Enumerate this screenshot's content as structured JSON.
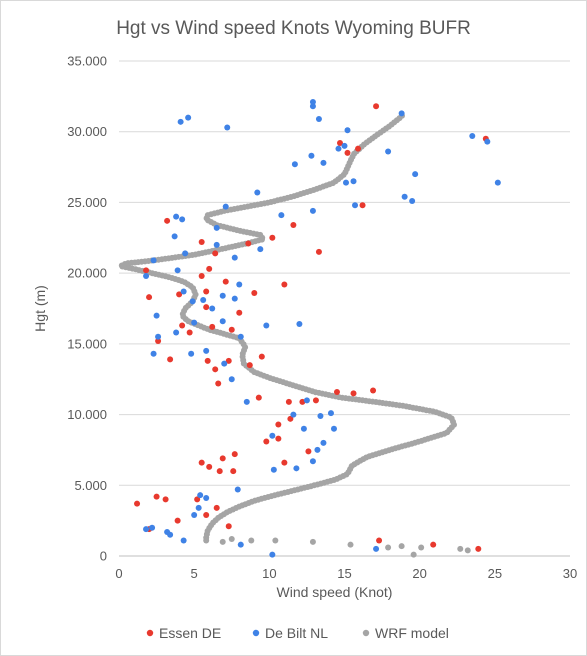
{
  "chart_data": {
    "type": "scatter",
    "title": "Hgt vs Wind speed Knots Wyoming BUFR",
    "xlabel": "Wind speed  (Knot)",
    "ylabel": "Hgt (m)",
    "xlim": [
      0,
      30
    ],
    "ylim": [
      0,
      35000
    ],
    "x_ticks": [
      0,
      5,
      10,
      15,
      20,
      25,
      30
    ],
    "x_tick_labels": [
      "0",
      "5",
      "10",
      "15",
      "20",
      "25",
      "30"
    ],
    "y_ticks": [
      0,
      5000,
      10000,
      15000,
      20000,
      25000,
      30000,
      35000
    ],
    "y_tick_labels": [
      "0",
      "5.000",
      "10.000",
      "15.000",
      "20.000",
      "25.000",
      "30.000",
      "35.000"
    ],
    "grid": "horizontal",
    "legend_position": "bottom",
    "colors": {
      "essen": "#e8392e",
      "debilt": "#3f82e6",
      "wrf": "#a5a5a5"
    },
    "series": [
      {
        "name": "Essen DE",
        "color": "#e8392e",
        "points": [
          [
            23.9,
            500
          ],
          [
            20.9,
            800
          ],
          [
            17.3,
            1100
          ],
          [
            1.2,
            3700
          ],
          [
            2.0,
            1900
          ],
          [
            2.5,
            4200
          ],
          [
            3.1,
            4000
          ],
          [
            3.9,
            2500
          ],
          [
            5.8,
            2900
          ],
          [
            5.2,
            4000
          ],
          [
            6.5,
            3400
          ],
          [
            7.3,
            2100
          ],
          [
            5.5,
            6600
          ],
          [
            6.0,
            6300
          ],
          [
            6.7,
            6000
          ],
          [
            6.9,
            6900
          ],
          [
            7.6,
            6000
          ],
          [
            7.7,
            7200
          ],
          [
            11.0,
            6600
          ],
          [
            12.6,
            7400
          ],
          [
            10.6,
            9300
          ],
          [
            11.4,
            9700
          ],
          [
            9.8,
            8100
          ],
          [
            10.6,
            8300
          ],
          [
            11.3,
            10900
          ],
          [
            9.3,
            11200
          ],
          [
            13.1,
            11000
          ],
          [
            14.5,
            11600
          ],
          [
            15.6,
            11500
          ],
          [
            16.9,
            11700
          ],
          [
            12.2,
            10900
          ],
          [
            6.6,
            12200
          ],
          [
            6.4,
            13200
          ],
          [
            5.9,
            13800
          ],
          [
            7.3,
            13800
          ],
          [
            9.5,
            14100
          ],
          [
            8.7,
            13500
          ],
          [
            3.4,
            13900
          ],
          [
            2.6,
            15200
          ],
          [
            4.7,
            15800
          ],
          [
            4.2,
            16300
          ],
          [
            5.8,
            17600
          ],
          [
            6.2,
            16200
          ],
          [
            7.5,
            16000
          ],
          [
            8.0,
            17200
          ],
          [
            4.0,
            18500
          ],
          [
            5.8,
            18700
          ],
          [
            5.5,
            19800
          ],
          [
            6.0,
            20300
          ],
          [
            7.1,
            19400
          ],
          [
            9.0,
            18600
          ],
          [
            11.0,
            19200
          ],
          [
            2.0,
            18300
          ],
          [
            1.8,
            20200
          ],
          [
            6.4,
            21400
          ],
          [
            5.5,
            22200
          ],
          [
            8.6,
            22100
          ],
          [
            10.2,
            22500
          ],
          [
            13.3,
            21500
          ],
          [
            11.6,
            23400
          ],
          [
            3.2,
            23700
          ],
          [
            14.7,
            29200
          ],
          [
            15.2,
            28500
          ],
          [
            15.9,
            28800
          ],
          [
            16.2,
            24800
          ],
          [
            17.1,
            31800
          ],
          [
            24.4,
            29500
          ]
        ]
      },
      {
        "name": "De Bilt NL",
        "color": "#3f82e6",
        "points": [
          [
            10.2,
            100
          ],
          [
            8.1,
            800
          ],
          [
            17.1,
            500
          ],
          [
            1.8,
            1900
          ],
          [
            2.2,
            2000
          ],
          [
            3.2,
            1700
          ],
          [
            3.4,
            1500
          ],
          [
            4.3,
            1100
          ],
          [
            5.0,
            2900
          ],
          [
            5.3,
            3400
          ],
          [
            5.4,
            4300
          ],
          [
            5.8,
            4100
          ],
          [
            7.9,
            4700
          ],
          [
            10.3,
            6100
          ],
          [
            11.8,
            6200
          ],
          [
            12.9,
            6700
          ],
          [
            13.2,
            7500
          ],
          [
            13.6,
            8000
          ],
          [
            12.3,
            9000
          ],
          [
            13.4,
            9900
          ],
          [
            14.3,
            9000
          ],
          [
            14.1,
            10100
          ],
          [
            12.5,
            11000
          ],
          [
            11.6,
            10000
          ],
          [
            10.2,
            8500
          ],
          [
            8.5,
            10900
          ],
          [
            7.5,
            12500
          ],
          [
            7.0,
            13600
          ],
          [
            5.8,
            14500
          ],
          [
            4.8,
            14300
          ],
          [
            2.3,
            14300
          ],
          [
            2.6,
            15500
          ],
          [
            3.8,
            15800
          ],
          [
            5.0,
            16500
          ],
          [
            6.9,
            16600
          ],
          [
            8.1,
            15500
          ],
          [
            9.8,
            16300
          ],
          [
            12.0,
            16400
          ],
          [
            6.2,
            17500
          ],
          [
            6.9,
            18400
          ],
          [
            7.7,
            18200
          ],
          [
            8.0,
            19200
          ],
          [
            5.6,
            18100
          ],
          [
            4.9,
            18000
          ],
          [
            4.3,
            18700
          ],
          [
            2.5,
            17000
          ],
          [
            1.8,
            19800
          ],
          [
            2.3,
            20900
          ],
          [
            3.9,
            20200
          ],
          [
            4.4,
            21400
          ],
          [
            6.5,
            22000
          ],
          [
            7.7,
            21100
          ],
          [
            9.4,
            21700
          ],
          [
            3.7,
            22600
          ],
          [
            3.8,
            24000
          ],
          [
            4.2,
            23800
          ],
          [
            6.5,
            23200
          ],
          [
            7.1,
            24700
          ],
          [
            9.2,
            25700
          ],
          [
            10.8,
            24100
          ],
          [
            12.9,
            24400
          ],
          [
            15.7,
            24800
          ],
          [
            15.1,
            26400
          ],
          [
            15.6,
            26500
          ],
          [
            11.7,
            27700
          ],
          [
            12.8,
            28300
          ],
          [
            13.6,
            27800
          ],
          [
            14.6,
            28800
          ],
          [
            15.0,
            29000
          ],
          [
            15.2,
            30100
          ],
          [
            13.3,
            30900
          ],
          [
            12.9,
            31800
          ],
          [
            12.9,
            32100
          ],
          [
            18.8,
            31300
          ],
          [
            4.1,
            30700
          ],
          [
            4.6,
            31000
          ],
          [
            7.2,
            30300
          ],
          [
            17.9,
            28600
          ],
          [
            19.0,
            25400
          ],
          [
            19.5,
            25100
          ],
          [
            19.7,
            27000
          ],
          [
            23.5,
            29700
          ],
          [
            24.5,
            29300
          ],
          [
            25.2,
            26400
          ]
        ]
      },
      {
        "name": "WRF model",
        "color": "#a5a5a5",
        "curve": [
          [
            5.8,
            1300
          ],
          [
            5.9,
            1800
          ],
          [
            6.2,
            2300
          ],
          [
            6.6,
            2700
          ],
          [
            7.2,
            3100
          ],
          [
            8.0,
            3500
          ],
          [
            9.0,
            3900
          ],
          [
            10.0,
            4200
          ],
          [
            11.5,
            4600
          ],
          [
            13.0,
            5000
          ],
          [
            14.4,
            5400
          ],
          [
            15.2,
            5800
          ],
          [
            15.5,
            6400
          ],
          [
            16.5,
            7000
          ],
          [
            18.0,
            7500
          ],
          [
            20.0,
            8100
          ],
          [
            21.8,
            8700
          ],
          [
            22.3,
            9300
          ],
          [
            22.1,
            9800
          ],
          [
            21.0,
            10200
          ],
          [
            19.0,
            10600
          ],
          [
            17.0,
            10900
          ],
          [
            14.8,
            11200
          ],
          [
            13.0,
            11600
          ],
          [
            11.5,
            12100
          ],
          [
            10.0,
            12600
          ],
          [
            9.0,
            13000
          ],
          [
            8.3,
            13600
          ],
          [
            8.2,
            14200
          ],
          [
            8.4,
            14800
          ],
          [
            8.0,
            15400
          ],
          [
            7.0,
            15700
          ],
          [
            6.0,
            16000
          ],
          [
            5.3,
            16300
          ],
          [
            4.6,
            16600
          ],
          [
            4.2,
            17000
          ],
          [
            4.4,
            17500
          ],
          [
            4.9,
            18000
          ],
          [
            5.1,
            18500
          ],
          [
            4.9,
            19000
          ],
          [
            4.3,
            19400
          ],
          [
            3.4,
            19700
          ],
          [
            2.2,
            20000
          ],
          [
            1.0,
            20300
          ],
          [
            0.1,
            20500
          ],
          [
            0.5,
            20700
          ],
          [
            1.5,
            20800
          ],
          [
            3.0,
            21000
          ],
          [
            5.0,
            21300
          ],
          [
            6.8,
            21700
          ],
          [
            8.5,
            22100
          ],
          [
            9.6,
            22400
          ],
          [
            9.4,
            22700
          ],
          [
            8.0,
            23000
          ],
          [
            6.5,
            23400
          ],
          [
            5.8,
            23800
          ],
          [
            5.9,
            24100
          ],
          [
            7.0,
            24400
          ],
          [
            8.5,
            24700
          ],
          [
            10.0,
            25000
          ],
          [
            11.5,
            25400
          ],
          [
            13.0,
            25900
          ],
          [
            14.3,
            26400
          ],
          [
            15.0,
            27000
          ],
          [
            15.3,
            27700
          ],
          [
            15.6,
            28400
          ],
          [
            16.3,
            29100
          ],
          [
            17.2,
            29800
          ],
          [
            18.0,
            30400
          ],
          [
            18.6,
            30900
          ],
          [
            18.9,
            31200
          ]
        ],
        "points": [
          [
            23.2,
            400
          ],
          [
            22.7,
            500
          ],
          [
            20.1,
            600
          ],
          [
            19.6,
            100
          ],
          [
            18.8,
            700
          ],
          [
            17.9,
            600
          ],
          [
            15.4,
            800
          ],
          [
            12.9,
            1000
          ],
          [
            10.4,
            1100
          ],
          [
            8.8,
            1100
          ],
          [
            7.5,
            1200
          ],
          [
            6.9,
            1000
          ],
          [
            5.8,
            1100
          ]
        ]
      }
    ]
  }
}
